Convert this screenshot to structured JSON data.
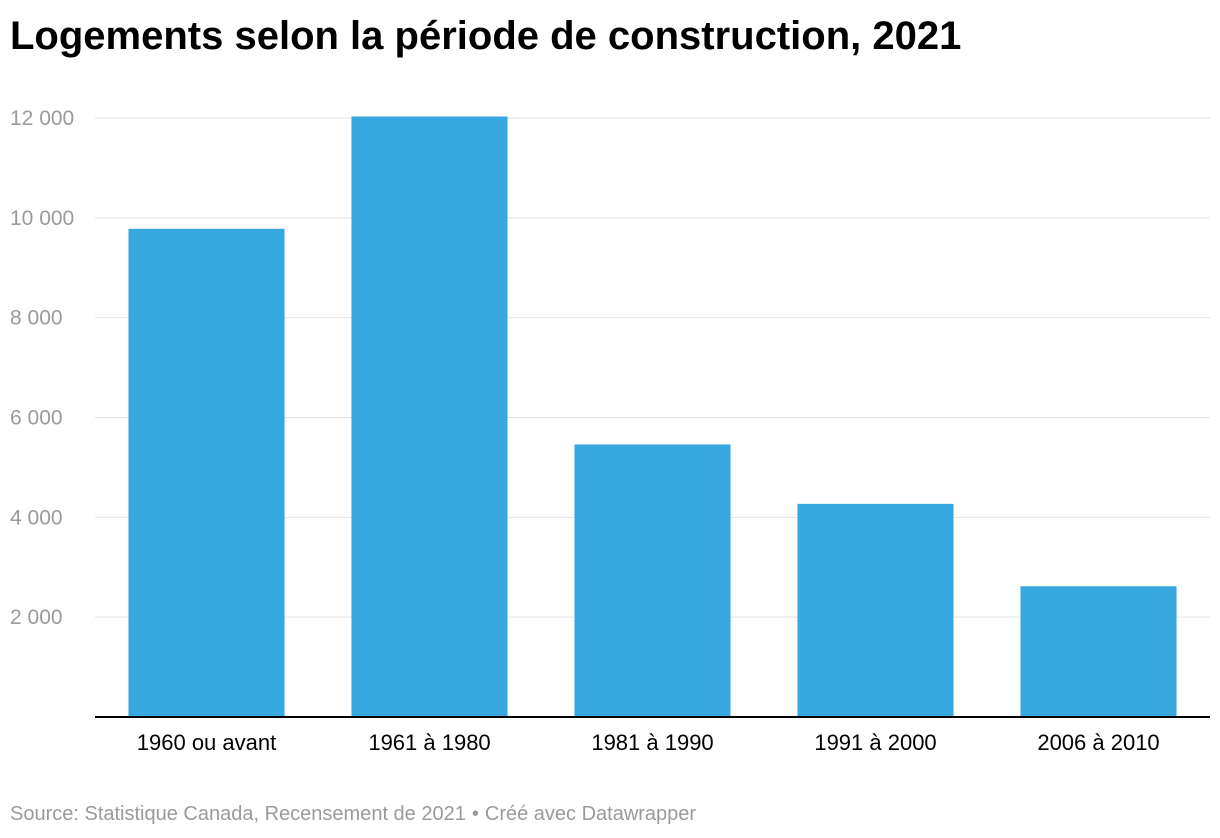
{
  "title": "Logements selon la période de construction, 2021",
  "footer": {
    "source": "Source: Statistique Canada, Recensement de 2021",
    "separator": "•",
    "credit": "Créé avec Datawrapper"
  },
  "chart_data": {
    "type": "bar",
    "title": "Logements selon la période de construction, 2021",
    "xlabel": "",
    "ylabel": "",
    "categories": [
      "1960 ou avant",
      "1961 à 1980",
      "1981 à 1990",
      "1991 à 2000",
      "2006 à 2010"
    ],
    "values": [
      9780,
      12030,
      5460,
      4270,
      2620
    ],
    "ylim": [
      0,
      12000
    ],
    "yticks": [
      2000,
      4000,
      6000,
      8000,
      10000,
      12000
    ],
    "ytick_labels": [
      "2 000",
      "4 000",
      "6 000",
      "8 000",
      "10 000",
      "12 000"
    ],
    "grid": true,
    "legend": "none",
    "colors": {
      "bar": "#38a9e0",
      "grid": "#e2e2e2",
      "axis": "#000000",
      "tick_label": "#9a9a9a",
      "category_label": "#000000"
    }
  }
}
